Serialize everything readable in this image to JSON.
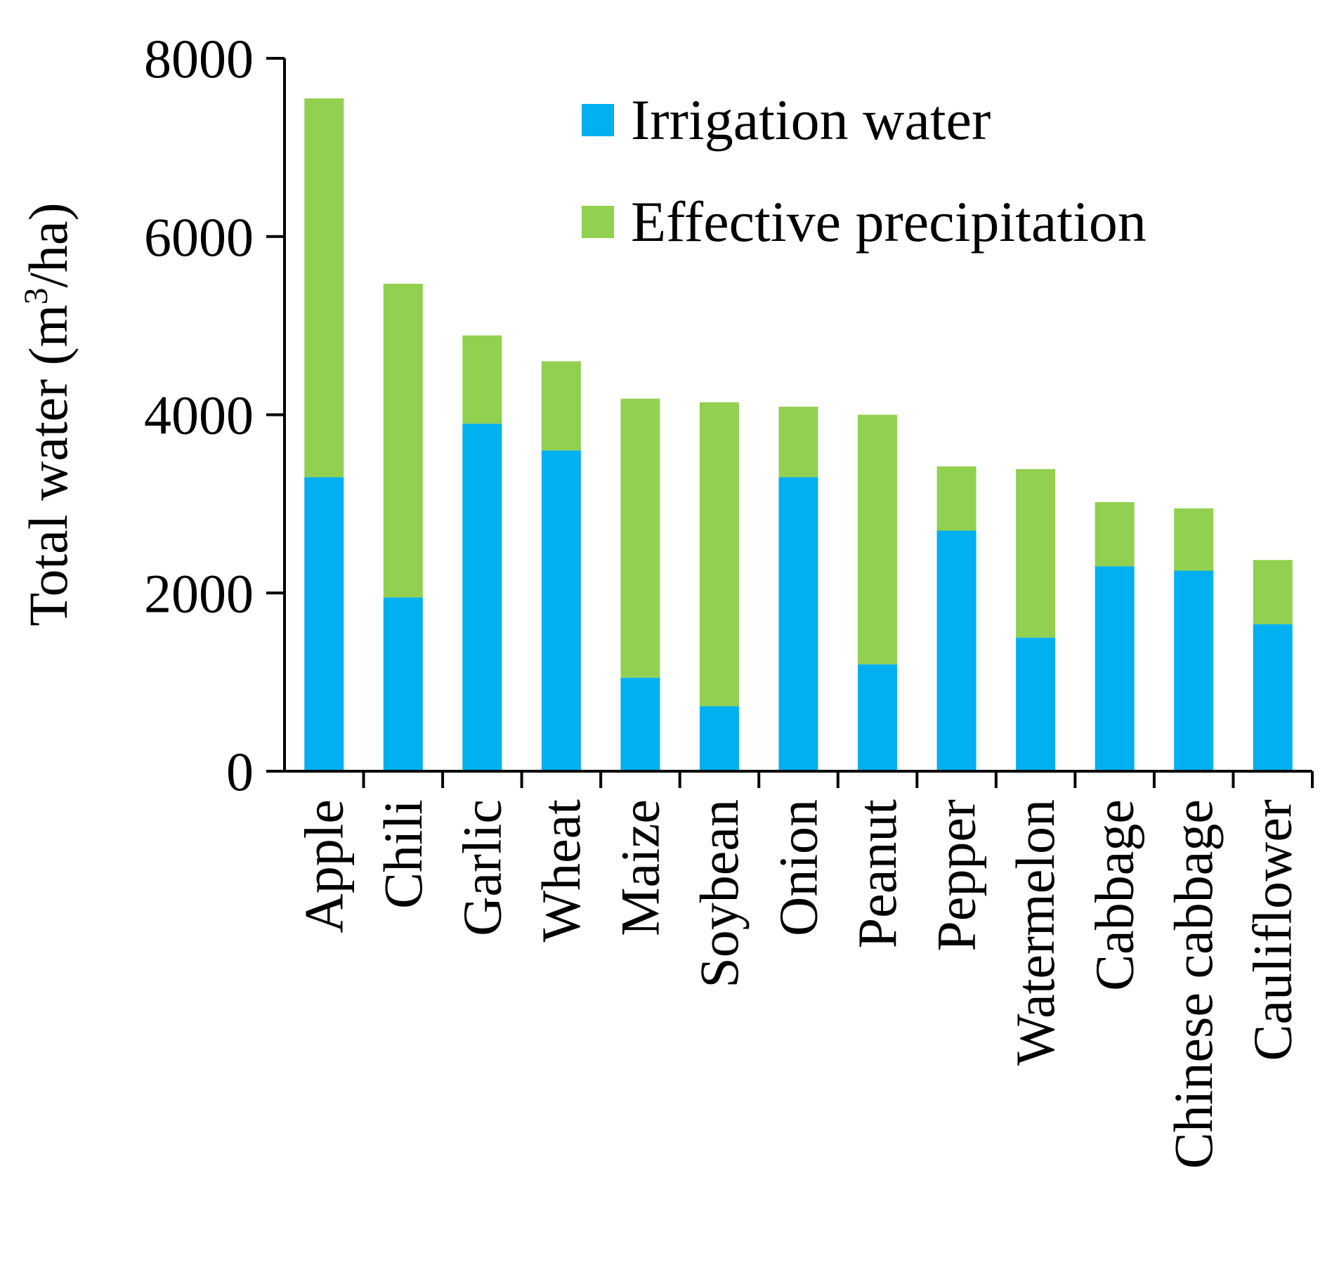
{
  "chart_data": {
    "type": "bar",
    "stacked": true,
    "title": "",
    "xlabel": "",
    "ylabel_main": "Total water (m",
    "ylabel_sup": "3",
    "ylabel_tail": "/ha)",
    "ylim": [
      0,
      8000
    ],
    "yticks": [
      0,
      2000,
      4000,
      6000,
      8000
    ],
    "legend_position": "top-right",
    "categories": [
      "Apple",
      "Chili",
      "Garlic",
      "Wheat",
      "Maize",
      "Soybean",
      "Onion",
      "Peanut",
      "Pepper",
      "Watermelon",
      "Cabbage",
      "Chinese cabbage",
      "Cauliflower"
    ],
    "series": [
      {
        "name": "Irrigation water",
        "color": "#00b0f0",
        "values": [
          3300,
          1950,
          3900,
          3600,
          1050,
          730,
          3300,
          1200,
          2700,
          1500,
          2300,
          2250,
          1650
        ]
      },
      {
        "name": "Effective precipitation",
        "color": "#92d050",
        "values": [
          4250,
          3520,
          990,
          1000,
          3130,
          3410,
          790,
          2800,
          720,
          1890,
          720,
          700,
          720
        ]
      }
    ]
  }
}
